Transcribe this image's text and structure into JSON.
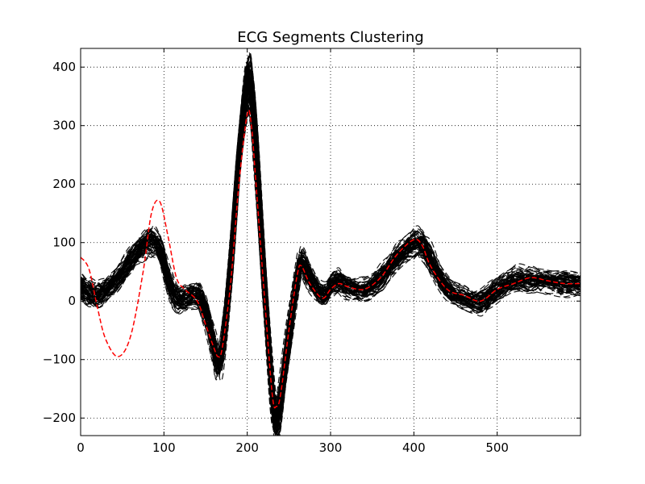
{
  "chart_data": {
    "type": "line",
    "title": "ECG Segments Clustering",
    "xlabel": "",
    "ylabel": "",
    "xlim": [
      0,
      600
    ],
    "ylim": [
      -230,
      432
    ],
    "x_ticks": [
      0,
      100,
      200,
      300,
      400,
      500
    ],
    "y_ticks": [
      -200,
      -100,
      0,
      100,
      200,
      300,
      400
    ],
    "x_tick_labels": [
      "0",
      "100",
      "200",
      "300",
      "400",
      "500"
    ],
    "y_tick_labels": [
      "−200",
      "−100",
      "0",
      "100",
      "200",
      "300",
      "400"
    ],
    "grid": true,
    "legend": "none",
    "colors": {
      "segments": "#000000",
      "highlight": "#ff0000"
    },
    "template_x": [
      0,
      10,
      20,
      30,
      45,
      60,
      75,
      85,
      95,
      105,
      115,
      125,
      140,
      150,
      160,
      165,
      170,
      180,
      190,
      200,
      205,
      210,
      220,
      230,
      235,
      240,
      250,
      260,
      265,
      275,
      290,
      300,
      310,
      320,
      340,
      360,
      380,
      400,
      410,
      420,
      440,
      460,
      480,
      500,
      520,
      540,
      560,
      580,
      600
    ],
    "template_y": [
      25,
      15,
      10,
      20,
      40,
      70,
      95,
      105,
      90,
      40,
      5,
      5,
      10,
      -20,
      -80,
      -110,
      -80,
      60,
      250,
      380,
      360,
      270,
      40,
      -160,
      -210,
      -170,
      -60,
      40,
      65,
      40,
      10,
      25,
      35,
      25,
      20,
      40,
      75,
      100,
      95,
      70,
      20,
      5,
      0,
      20,
      35,
      35,
      35,
      30,
      30
    ],
    "segment_variation_count": 80,
    "series": [
      {
        "role": "highlight",
        "style": "dashed",
        "x": [
          0,
          10,
          20,
          30,
          45,
          60,
          75,
          85,
          95,
          105,
          115,
          125,
          140,
          150,
          160,
          165,
          170,
          180,
          190,
          200,
          205,
          210,
          220,
          230,
          235,
          240,
          250,
          260,
          265,
          275,
          290,
          300,
          310,
          320,
          340,
          360,
          380,
          400,
          410,
          420,
          440,
          460,
          480,
          500,
          520,
          540,
          560,
          580,
          600
        ],
        "y": [
          75,
          55,
          -10,
          -65,
          -95,
          -60,
          50,
          150,
          170,
          110,
          40,
          20,
          0,
          -40,
          -80,
          -95,
          -80,
          30,
          200,
          320,
          300,
          210,
          20,
          -160,
          -180,
          -160,
          -50,
          45,
          60,
          30,
          5,
          20,
          30,
          25,
          20,
          40,
          80,
          105,
          95,
          60,
          20,
          10,
          0,
          20,
          30,
          40,
          35,
          30,
          30
        ]
      }
    ]
  }
}
